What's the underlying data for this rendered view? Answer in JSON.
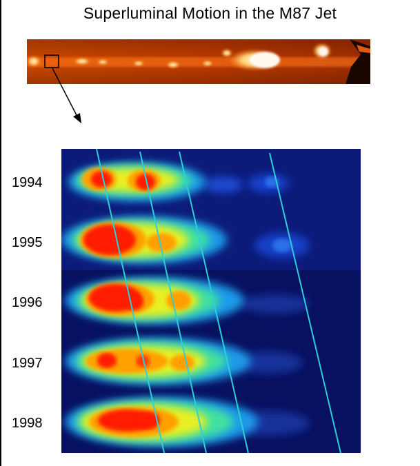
{
  "title": "Superluminal Motion in the M87 Jet",
  "years": [
    "1994",
    "1995",
    "1996",
    "1997",
    "1998"
  ],
  "colors": {
    "jet_background": "#c23a00",
    "frame_background": "#0a1470",
    "track_line": "#2ed0d8",
    "hot_core": "#ff1a00"
  }
}
